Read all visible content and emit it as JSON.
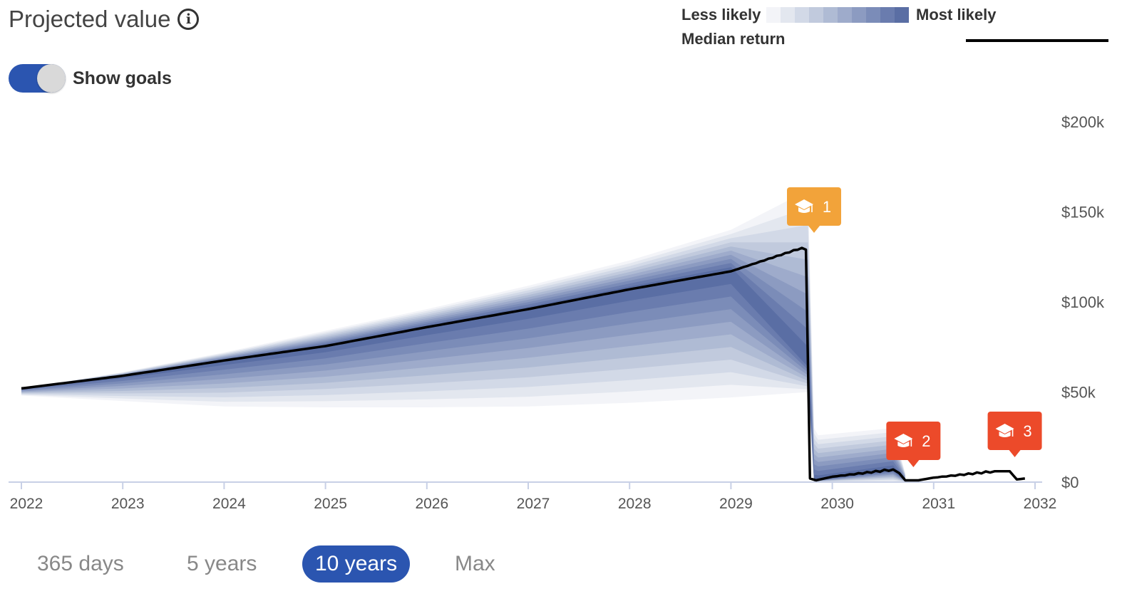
{
  "header": {
    "title": "Projected value",
    "info_icon": "info-circle-icon"
  },
  "goals_toggle": {
    "label": "Show goals",
    "on": true
  },
  "legend": {
    "less_likely": "Less likely",
    "most_likely": "Most likely",
    "median_return": "Median return",
    "ramp_colors": [
      "#f3f4f8",
      "#e3e7ef",
      "#d2d9e7",
      "#c1cadd",
      "#afbbd4",
      "#9eabcb",
      "#8c9bc1",
      "#7b8cb8",
      "#6a7cae",
      "#5a6ea4"
    ]
  },
  "range_tabs": [
    {
      "label": "365 days",
      "active": false
    },
    {
      "label": "5 years",
      "active": false
    },
    {
      "label": "10 years",
      "active": true
    },
    {
      "label": "Max",
      "active": false
    }
  ],
  "colors": {
    "accent": "#2b55b0",
    "goal_orange": "#f2a33a",
    "goal_red": "#ec4a2a",
    "goal_red_orange": "#f26a22",
    "median_line": "#000000",
    "axis_line": "#c8d0e6"
  },
  "chart_data": {
    "type": "area",
    "xlim": [
      2022,
      2032
    ],
    "ylim": [
      0,
      200000
    ],
    "x_ticks": [
      "2022",
      "2023",
      "2024",
      "2025",
      "2026",
      "2027",
      "2028",
      "2029",
      "2030",
      "2031",
      "2032"
    ],
    "y_ticks": [
      {
        "value": 0,
        "label": "$0"
      },
      {
        "value": 50000,
        "label": "$50k"
      },
      {
        "value": 100000,
        "label": "$100k"
      },
      {
        "value": 150000,
        "label": "$150k"
      },
      {
        "value": 200000,
        "label": "$200k"
      }
    ],
    "median": {
      "x": [
        2022.0,
        2023.0,
        2024.0,
        2025.0,
        2026.0,
        2027.0,
        2028.0,
        2029.0,
        2029.7,
        2029.74,
        2029.78,
        2029.84,
        2030.0,
        2030.6,
        2030.66,
        2030.72,
        2030.85,
        2031.0,
        2031.6,
        2031.75,
        2031.82,
        2031.9
      ],
      "y": [
        52000,
        59000,
        67500,
        75500,
        86000,
        96000,
        107000,
        117000,
        130000,
        129000,
        2000,
        1000,
        3000,
        7000,
        5000,
        1000,
        1000,
        2500,
        6000,
        6000,
        1500,
        2000
      ]
    },
    "bands": {
      "x": [
        2022.0,
        2023.0,
        2024.0,
        2025.0,
        2026.0,
        2027.0,
        2028.0,
        2029.0,
        2029.76,
        2029.82,
        2029.86,
        2030.6,
        2030.72
      ],
      "upper": [
        52000,
        61000,
        72000,
        84000,
        96000,
        109000,
        123000,
        140000,
        162000,
        30000,
        26000,
        30000,
        5000
      ],
      "lower": [
        48000,
        45000,
        42000,
        41500,
        41500,
        42000,
        44000,
        47000,
        50000,
        0,
        0,
        0,
        0
      ]
    },
    "goals": [
      {
        "label": "1",
        "x": 2029.82,
        "icon": "graduation-cap-icon",
        "color": "#f2a33a"
      },
      {
        "label": "2",
        "x": 2030.8,
        "icon": "graduation-cap-icon",
        "color": "#ec4a2a"
      },
      {
        "label": "3",
        "x": 2031.8,
        "icon": "graduation-cap-icon",
        "color": "#ec4a2a"
      }
    ]
  }
}
